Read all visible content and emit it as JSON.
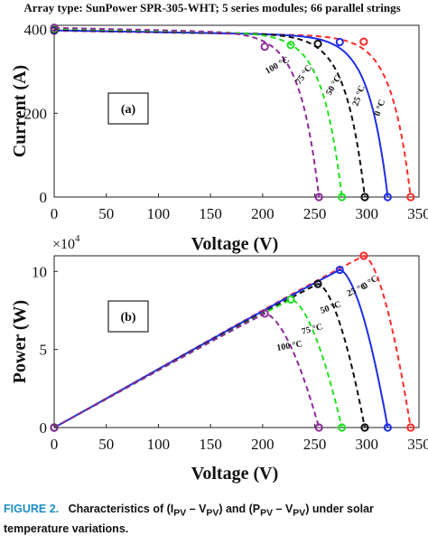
{
  "header": "Array type: SunPower SPR-305-WHT; 5 series modules; 66 parallel strings",
  "caption": {
    "label": "FIGURE 2.",
    "text_line1": "Characteristics of (I",
    "text_sub1": "PV",
    "text_mid1": " – V",
    "text_sub2": "PV",
    "text_mid2": ") and (P",
    "text_sub3": "PV",
    "text_mid3": " – V",
    "text_sub4": "PV",
    "text_end": ") under solar",
    "text_line2": "temperature variations."
  },
  "colors": {
    "t0": "#ff2a2a",
    "t25": "#1f2ee8",
    "t50": "#111111",
    "t75": "#22e022",
    "t100": "#8e2a9a"
  },
  "chart_data": [
    {
      "type": "line",
      "panel_label": "(a)",
      "xlabel": "Voltage (V)",
      "ylabel": "Current (A)",
      "xlim": [
        0,
        350
      ],
      "ylim": [
        0,
        410
      ],
      "xticks": [
        "0",
        "50",
        "100",
        "150",
        "200",
        "250",
        "300",
        "350"
      ],
      "yticks": [
        "0",
        "200",
        "400"
      ],
      "series": [
        {
          "name": "0 °C",
          "color_key": "t0",
          "style": "dashed",
          "isc": 397,
          "voc": 342,
          "mpp": [
            297,
            371
          ]
        },
        {
          "name": "25 °C",
          "color_key": "t25",
          "style": "solid",
          "isc": 398,
          "voc": 320,
          "mpp": [
            274,
            370
          ]
        },
        {
          "name": "50 °C",
          "color_key": "t50",
          "style": "dashed",
          "isc": 400,
          "voc": 298,
          "mpp": [
            253,
            366
          ]
        },
        {
          "name": "75 °C",
          "color_key": "t75",
          "style": "dashed",
          "isc": 402,
          "voc": 276,
          "mpp": [
            227,
            363
          ]
        },
        {
          "name": "100 °C",
          "color_key": "t100",
          "style": "dashed",
          "isc": 404,
          "voc": 254,
          "mpp": [
            202,
            359
          ]
        }
      ]
    },
    {
      "type": "line",
      "panel_label": "(b)",
      "xlabel": "Voltage (V)",
      "ylabel": "Power (W)",
      "y_multiplier": "×10",
      "y_multiplier_exp": "4",
      "xlim": [
        0,
        350
      ],
      "ylim": [
        0,
        11
      ],
      "xticks": [
        "0",
        "50",
        "100",
        "150",
        "200",
        "250",
        "300",
        "350"
      ],
      "yticks": [
        "0",
        "5",
        "10"
      ],
      "series": [
        {
          "name": "0 °C",
          "color_key": "t0",
          "voc": 342,
          "mpp": [
            297,
            11.0
          ]
        },
        {
          "name": "25 °C",
          "color_key": "t25",
          "voc": 320,
          "mpp": [
            274,
            10.1
          ]
        },
        {
          "name": "50 °C",
          "color_key": "t50",
          "voc": 298,
          "mpp": [
            253,
            9.2
          ]
        },
        {
          "name": "75 °C",
          "color_key": "t75",
          "voc": 276,
          "mpp": [
            227,
            8.2
          ]
        },
        {
          "name": "100 °C",
          "color_key": "t100",
          "voc": 254,
          "mpp": [
            202,
            7.3
          ]
        }
      ]
    }
  ]
}
